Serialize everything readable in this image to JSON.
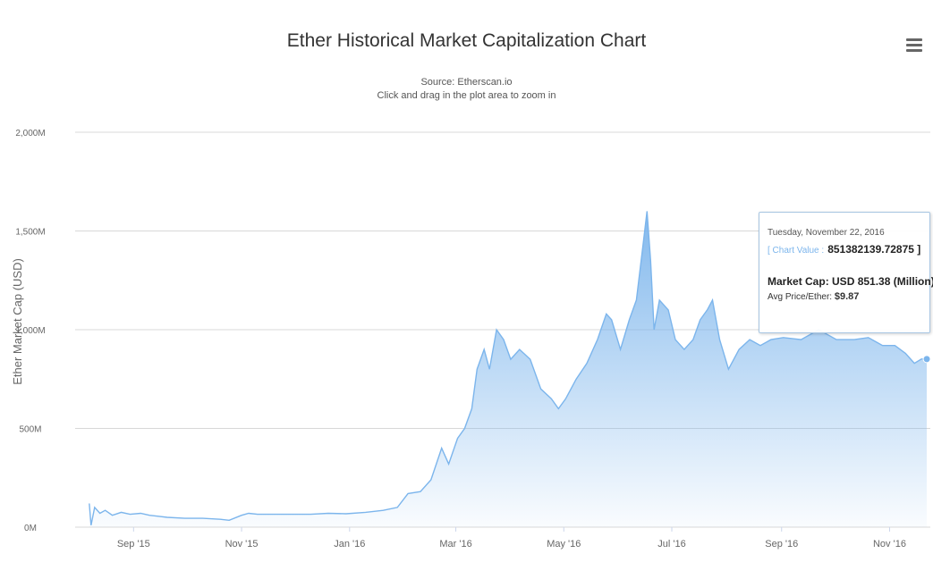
{
  "chart_data": {
    "type": "area",
    "title": "Ether Historical Market Capitalization Chart",
    "subtitle_source": "Source: Etherscan.io",
    "subtitle_hint": "Click and drag in the plot area to zoom in",
    "xlabel": "",
    "ylabel": "Ether Market Cap (USD)",
    "x_ticks": [
      "Sep '15",
      "Nov '15",
      "Jan '16",
      "Mar '16",
      "May '16",
      "Jul '16",
      "Sep '16",
      "Nov '16"
    ],
    "y_ticks": [
      "0M",
      "500M",
      "1,000M",
      "1,500M",
      "2,000M"
    ],
    "ylim": [
      0,
      2000
    ],
    "grid": true,
    "color": "#7cb5ec",
    "series": [
      {
        "values": [
          [
            "2015-08-07",
            120
          ],
          [
            "2015-08-08",
            10
          ],
          [
            "2015-08-10",
            100
          ],
          [
            "2015-08-13",
            70
          ],
          [
            "2015-08-16",
            85
          ],
          [
            "2015-08-20",
            60
          ],
          [
            "2015-08-25",
            75
          ],
          [
            "2015-08-30",
            65
          ],
          [
            "2015-09-05",
            70
          ],
          [
            "2015-09-10",
            60
          ],
          [
            "2015-09-15",
            55
          ],
          [
            "2015-09-20",
            50
          ],
          [
            "2015-09-30",
            45
          ],
          [
            "2015-10-10",
            45
          ],
          [
            "2015-10-20",
            40
          ],
          [
            "2015-10-25",
            35
          ],
          [
            "2015-11-01",
            60
          ],
          [
            "2015-11-05",
            70
          ],
          [
            "2015-11-10",
            65
          ],
          [
            "2015-11-20",
            65
          ],
          [
            "2015-12-01",
            65
          ],
          [
            "2015-12-10",
            65
          ],
          [
            "2015-12-20",
            70
          ],
          [
            "2015-12-30",
            68
          ],
          [
            "2016-01-10",
            75
          ],
          [
            "2016-01-20",
            85
          ],
          [
            "2016-01-28",
            100
          ],
          [
            "2016-02-03",
            170
          ],
          [
            "2016-02-10",
            180
          ],
          [
            "2016-02-16",
            240
          ],
          [
            "2016-02-22",
            400
          ],
          [
            "2016-02-26",
            320
          ],
          [
            "2016-03-02",
            450
          ],
          [
            "2016-03-06",
            500
          ],
          [
            "2016-03-10",
            600
          ],
          [
            "2016-03-13",
            800
          ],
          [
            "2016-03-17",
            900
          ],
          [
            "2016-03-20",
            800
          ],
          [
            "2016-03-24",
            1000
          ],
          [
            "2016-03-28",
            950
          ],
          [
            "2016-04-01",
            850
          ],
          [
            "2016-04-06",
            900
          ],
          [
            "2016-04-12",
            850
          ],
          [
            "2016-04-18",
            700
          ],
          [
            "2016-04-24",
            650
          ],
          [
            "2016-04-28",
            600
          ],
          [
            "2016-05-02",
            650
          ],
          [
            "2016-05-08",
            750
          ],
          [
            "2016-05-14",
            830
          ],
          [
            "2016-05-20",
            950
          ],
          [
            "2016-05-25",
            1080
          ],
          [
            "2016-05-28",
            1050
          ],
          [
            "2016-06-02",
            900
          ],
          [
            "2016-06-07",
            1050
          ],
          [
            "2016-06-11",
            1150
          ],
          [
            "2016-06-15",
            1450
          ],
          [
            "2016-06-17",
            1600
          ],
          [
            "2016-06-19",
            1350
          ],
          [
            "2016-06-21",
            1000
          ],
          [
            "2016-06-24",
            1150
          ],
          [
            "2016-06-29",
            1100
          ],
          [
            "2016-07-03",
            950
          ],
          [
            "2016-07-08",
            900
          ],
          [
            "2016-07-13",
            950
          ],
          [
            "2016-07-17",
            1050
          ],
          [
            "2016-07-21",
            1100
          ],
          [
            "2016-07-24",
            1150
          ],
          [
            "2016-07-28",
            950
          ],
          [
            "2016-08-02",
            800
          ],
          [
            "2016-08-08",
            900
          ],
          [
            "2016-08-14",
            950
          ],
          [
            "2016-08-20",
            920
          ],
          [
            "2016-08-26",
            950
          ],
          [
            "2016-09-02",
            960
          ],
          [
            "2016-09-12",
            950
          ],
          [
            "2016-09-22",
            1000
          ],
          [
            "2016-10-02",
            950
          ],
          [
            "2016-10-12",
            950
          ],
          [
            "2016-10-20",
            960
          ],
          [
            "2016-10-28",
            920
          ],
          [
            "2016-11-04",
            920
          ],
          [
            "2016-11-10",
            880
          ],
          [
            "2016-11-15",
            830
          ],
          [
            "2016-11-19",
            851.38
          ],
          [
            "2016-11-22",
            851.38
          ]
        ]
      }
    ]
  },
  "tooltip": {
    "date": "Tuesday, November 22, 2016",
    "label": "[ Chart Value :",
    "value": "851382139.72875 ]",
    "market_cap": "Market Cap: USD 851.38 (Million)",
    "avg_price_label": "Avg Price/Ether:",
    "avg_price_value": "$9.87"
  },
  "menu_icon": "hamburger-icon"
}
